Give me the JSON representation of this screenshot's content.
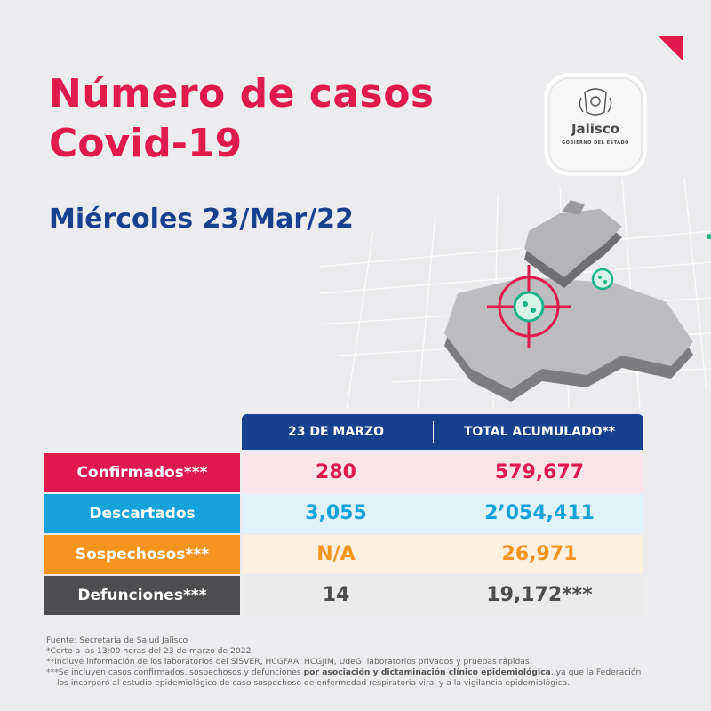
{
  "header": {
    "title_line1": "Número de casos",
    "title_line2": "Covid-19",
    "date": "Miércoles 23/Mar/22"
  },
  "logo": {
    "name": "Jalisco",
    "subtitle": "GOBIERNO DEL ESTADO"
  },
  "colors": {
    "accent_red": "#e0194f",
    "brand_blue": "#17418e",
    "cyan": "#16a3dc",
    "orange": "#f7941d",
    "dark_gray": "#4d4d4f"
  },
  "table": {
    "col_headers": [
      "23 DE MARZO",
      "TOTAL ACUMULADO**"
    ],
    "rows": [
      {
        "label": "Confirmados***",
        "day": "280",
        "total": "579,677",
        "color": "#e0194f",
        "bg": "#fbe3ea",
        "text_color": "#e0194f"
      },
      {
        "label": "Descartados",
        "day": "3,055",
        "total": "2’054,411",
        "color": "#16a3dc",
        "bg": "#e0f2fa",
        "text_color": "#16a3dc"
      },
      {
        "label": "Sospechosos***",
        "day": "N/A",
        "total": "26,971",
        "color": "#f7941d",
        "bg": "#fdf0e1",
        "text_color": "#f7941d"
      },
      {
        "label": "Defunciones***",
        "day": "14",
        "total": "19,172***",
        "color": "#4d4d4f",
        "bg": "#eaeaeb",
        "text_color": "#4d4d4f"
      }
    ]
  },
  "notes": {
    "source": "Fuente: Secretaría de Salud Jalisco",
    "cutoff": "*Corte a las 13:00 horas del 23 de marzo de 2022",
    "labs": "**Incluye información de los laboratorios del SISVER, HCGFAA, HCGJIM, UdeG, laboratorios privados y pruebas rápidas.",
    "included_pre": "***Se incluyen casos confirmados, sospechosos y defunciones ",
    "included_bold": "por asociación y dictaminación clínico epidemiológica",
    "included_post": ", ya que la Federación",
    "included_line2": "los incorporó al estudio epidemiológico de caso sospechoso de enfermedad respiratoria viral y a la vigilancia epidemiológica."
  }
}
